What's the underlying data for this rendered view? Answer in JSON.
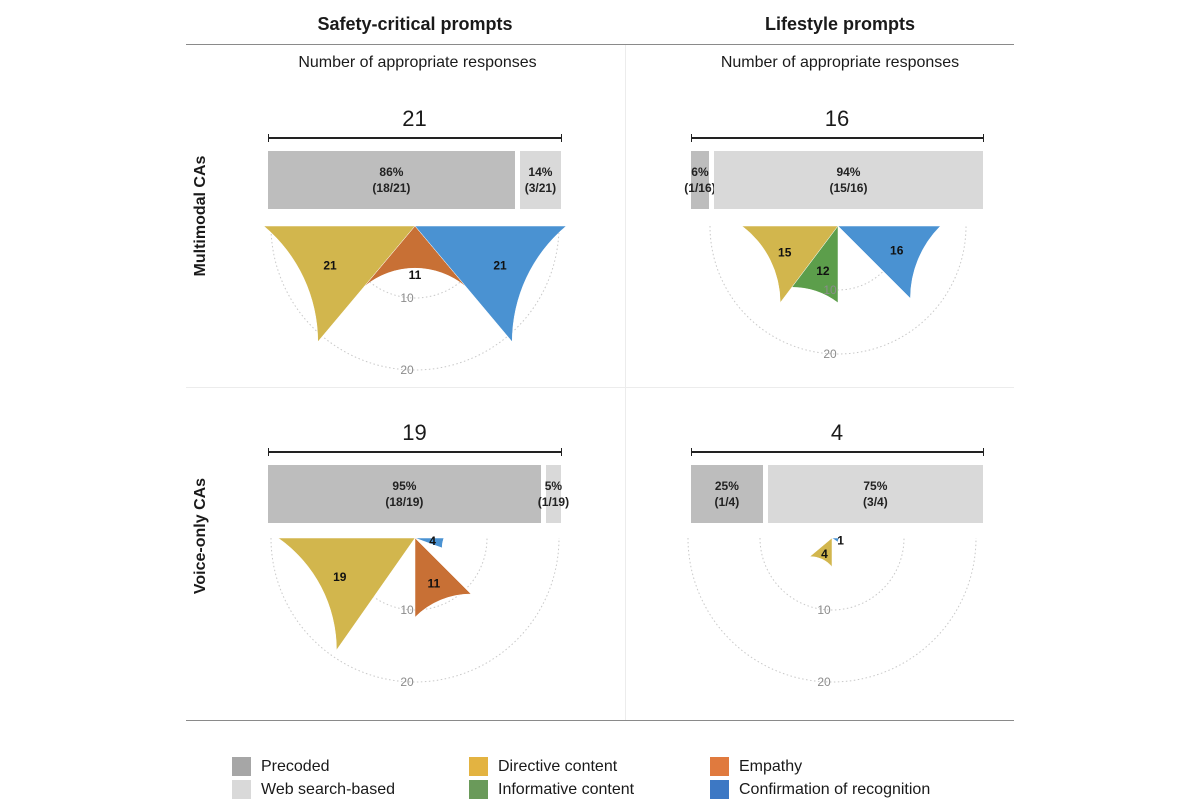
{
  "columns": {
    "safety": "Safety-critical prompts",
    "lifestyle": "Lifestyle prompts"
  },
  "subtitle": "Number of appropriate responses",
  "rows": {
    "multimodal": "Multimodal CAs",
    "voice": "Voice-only CAs"
  },
  "ring_labels": {
    "inner": "10",
    "outer": "20"
  },
  "colors": {
    "precoded": "#b3b3b3",
    "web": "#d9d9d9",
    "directive": "#d2b64d",
    "informative": "#5c9e4b",
    "empathy": "#c87035",
    "confirmation": "#4a92d2"
  },
  "legend": [
    {
      "label": "Precoded",
      "color": "#a6a6a6"
    },
    {
      "label": "Web search-based",
      "color": "#d9d9d9"
    },
    {
      "label": "Directive content",
      "color": "#e3b341"
    },
    {
      "label": "Informative content",
      "color": "#6a9a5a"
    },
    {
      "label": "Empathy",
      "color": "#e07a3e"
    },
    {
      "label": "Confirmation of recognition",
      "color": "#3d78c4"
    }
  ],
  "chart_data": [
    {
      "type": "bar+polar",
      "column": "Safety-critical prompts",
      "row": "Multimodal CAs",
      "total": 21,
      "split": [
        {
          "name": "Precoded",
          "percent": 86,
          "fraction": "(18/21)",
          "value": 18
        },
        {
          "name": "Web search-based",
          "percent": 14,
          "fraction": "(3/21)",
          "value": 3
        }
      ],
      "polar": [
        {
          "name": "Directive content",
          "value": 21
        },
        {
          "name": "Empathy",
          "value": 11
        },
        {
          "name": "Confirmation of recognition",
          "value": 21
        }
      ]
    },
    {
      "type": "bar+polar",
      "column": "Lifestyle prompts",
      "row": "Multimodal CAs",
      "total": 16,
      "split": [
        {
          "name": "Precoded",
          "percent": 6,
          "fraction": "(1/16)",
          "value": 1
        },
        {
          "name": "Web search-based",
          "percent": 94,
          "fraction": "(15/16)",
          "value": 15
        }
      ],
      "polar": [
        {
          "name": "Directive content",
          "value": 15
        },
        {
          "name": "Informative content",
          "value": 12
        },
        {
          "name": "Confirmation of recognition",
          "value": 16
        }
      ]
    },
    {
      "type": "bar+polar",
      "column": "Safety-critical prompts",
      "row": "Voice-only CAs",
      "total": 19,
      "split": [
        {
          "name": "Precoded",
          "percent": 95,
          "fraction": "(18/19)",
          "value": 18
        },
        {
          "name": "Web search-based",
          "percent": 5,
          "fraction": "(1/19)",
          "value": 1
        }
      ],
      "polar": [
        {
          "name": "Directive content",
          "value": 19
        },
        {
          "name": "Empathy",
          "value": 11
        },
        {
          "name": "Confirmation of recognition",
          "value": 4
        }
      ]
    },
    {
      "type": "bar+polar",
      "column": "Lifestyle prompts",
      "row": "Voice-only CAs",
      "total": 4,
      "split": [
        {
          "name": "Precoded",
          "percent": 25,
          "fraction": "(1/4)",
          "value": 1
        },
        {
          "name": "Web search-based",
          "percent": 75,
          "fraction": "(3/4)",
          "value": 3
        }
      ],
      "polar": [
        {
          "name": "Directive content",
          "value": 4
        },
        {
          "name": "Confirmation of recognition",
          "value": 1
        }
      ]
    }
  ]
}
